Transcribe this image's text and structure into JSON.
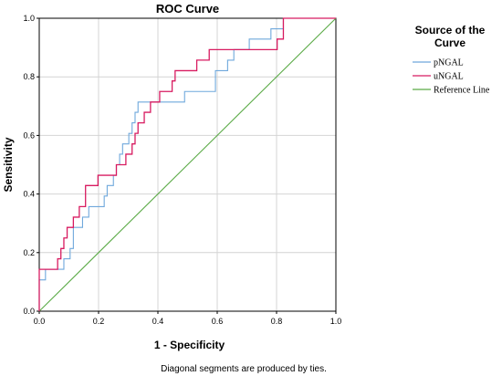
{
  "chart_data": {
    "type": "line",
    "title": "ROC Curve",
    "xlabel": "1 - Specificity",
    "ylabel": "Sensitivity",
    "xlim": [
      0.0,
      1.0
    ],
    "ylim": [
      0.0,
      1.0
    ],
    "x_ticks": [
      "0.0",
      "0.2",
      "0.4",
      "0.6",
      "0.8",
      "1.0"
    ],
    "y_ticks": [
      "0.0",
      "0.2",
      "0.4",
      "0.6",
      "0.8",
      "1.0"
    ],
    "grid": true,
    "legend": {
      "title_lines": [
        "Source of the",
        "Curve"
      ],
      "placement": "right",
      "entries": [
        {
          "label": "pNGAL",
          "color": "#6fa8dc"
        },
        {
          "label": "uNGAL",
          "color": "#d81b60"
        },
        {
          "label": "Reference Line",
          "color": "#5aaa46"
        }
      ]
    },
    "footnote": "Diagonal segments are produced by ties.",
    "series": [
      {
        "name": "pNGAL",
        "color": "#6fa8dc",
        "points": [
          [
            0.0,
            0.0
          ],
          [
            0.0,
            0.107
          ],
          [
            0.021,
            0.107
          ],
          [
            0.021,
            0.143
          ],
          [
            0.062,
            0.143
          ],
          [
            0.062,
            0.143
          ],
          [
            0.083,
            0.143
          ],
          [
            0.083,
            0.179
          ],
          [
            0.104,
            0.179
          ],
          [
            0.104,
            0.214
          ],
          [
            0.115,
            0.214
          ],
          [
            0.115,
            0.286
          ],
          [
            0.146,
            0.286
          ],
          [
            0.146,
            0.321
          ],
          [
            0.167,
            0.321
          ],
          [
            0.167,
            0.357
          ],
          [
            0.219,
            0.357
          ],
          [
            0.219,
            0.393
          ],
          [
            0.229,
            0.393
          ],
          [
            0.229,
            0.429
          ],
          [
            0.25,
            0.429
          ],
          [
            0.25,
            0.464
          ],
          [
            0.26,
            0.464
          ],
          [
            0.26,
            0.5
          ],
          [
            0.271,
            0.5
          ],
          [
            0.271,
            0.536
          ],
          [
            0.281,
            0.536
          ],
          [
            0.281,
            0.571
          ],
          [
            0.302,
            0.571
          ],
          [
            0.302,
            0.607
          ],
          [
            0.313,
            0.607
          ],
          [
            0.313,
            0.643
          ],
          [
            0.323,
            0.643
          ],
          [
            0.323,
            0.679
          ],
          [
            0.333,
            0.679
          ],
          [
            0.333,
            0.714
          ],
          [
            0.49,
            0.714
          ],
          [
            0.49,
            0.75
          ],
          [
            0.594,
            0.75
          ],
          [
            0.594,
            0.821
          ],
          [
            0.635,
            0.821
          ],
          [
            0.635,
            0.857
          ],
          [
            0.656,
            0.857
          ],
          [
            0.656,
            0.893
          ],
          [
            0.708,
            0.893
          ],
          [
            0.708,
            0.929
          ],
          [
            0.781,
            0.929
          ],
          [
            0.781,
            0.964
          ],
          [
            0.823,
            0.964
          ],
          [
            0.823,
            1.0
          ],
          [
            1.0,
            1.0
          ]
        ]
      },
      {
        "name": "uNGAL",
        "color": "#d81b60",
        "points": [
          [
            0.0,
            0.0
          ],
          [
            0.0,
            0.143
          ],
          [
            0.062,
            0.143
          ],
          [
            0.062,
            0.179
          ],
          [
            0.073,
            0.179
          ],
          [
            0.073,
            0.214
          ],
          [
            0.083,
            0.214
          ],
          [
            0.083,
            0.25
          ],
          [
            0.094,
            0.25
          ],
          [
            0.094,
            0.286
          ],
          [
            0.115,
            0.286
          ],
          [
            0.115,
            0.321
          ],
          [
            0.135,
            0.321
          ],
          [
            0.135,
            0.357
          ],
          [
            0.156,
            0.357
          ],
          [
            0.156,
            0.429
          ],
          [
            0.198,
            0.429
          ],
          [
            0.198,
            0.464
          ],
          [
            0.26,
            0.464
          ],
          [
            0.26,
            0.5
          ],
          [
            0.292,
            0.5
          ],
          [
            0.292,
            0.536
          ],
          [
            0.313,
            0.536
          ],
          [
            0.313,
            0.571
          ],
          [
            0.323,
            0.571
          ],
          [
            0.323,
            0.607
          ],
          [
            0.333,
            0.607
          ],
          [
            0.333,
            0.643
          ],
          [
            0.354,
            0.643
          ],
          [
            0.354,
            0.679
          ],
          [
            0.375,
            0.679
          ],
          [
            0.375,
            0.714
          ],
          [
            0.406,
            0.714
          ],
          [
            0.406,
            0.75
          ],
          [
            0.448,
            0.75
          ],
          [
            0.448,
            0.786
          ],
          [
            0.458,
            0.786
          ],
          [
            0.458,
            0.821
          ],
          [
            0.531,
            0.821
          ],
          [
            0.531,
            0.857
          ],
          [
            0.573,
            0.857
          ],
          [
            0.573,
            0.893
          ],
          [
            0.802,
            0.893
          ],
          [
            0.802,
            0.929
          ],
          [
            0.823,
            0.929
          ],
          [
            0.823,
            1.0
          ],
          [
            1.0,
            1.0
          ]
        ]
      },
      {
        "name": "Reference Line",
        "color": "#5aaa46",
        "points": [
          [
            0.0,
            0.0
          ],
          [
            1.0,
            1.0
          ]
        ]
      }
    ]
  }
}
